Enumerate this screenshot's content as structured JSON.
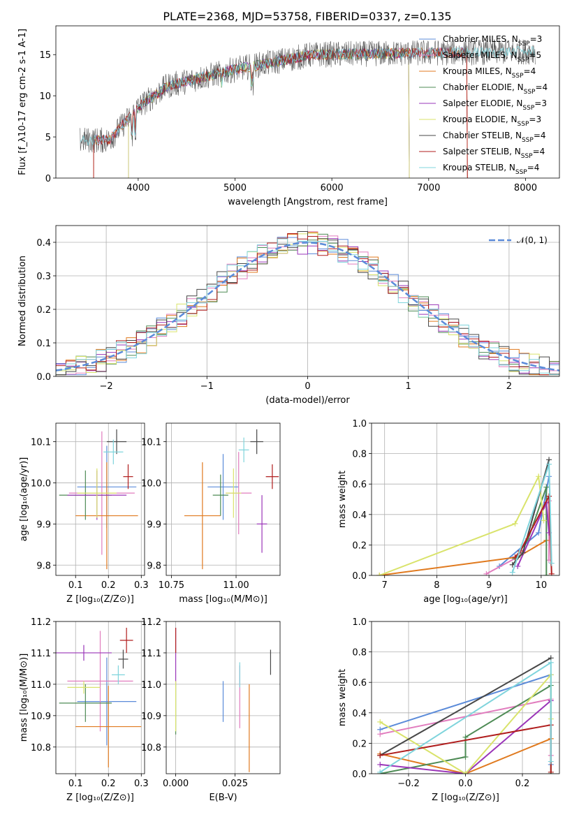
{
  "figure": {
    "title": "PLATE=2368, MJD=53758, FIBERID=0337, z=0.135"
  },
  "colors": {
    "Chabrier MILES": "#5b8bd9",
    "Salpeter MILES": "#e17cbe",
    "Kroupa MILES": "#e07a1f",
    "Chabrier ELODIE": "#4e8b55",
    "Salpeter ELODIE": "#9a35b8",
    "Kroupa ELODIE": "#d9e36b",
    "Chabrier STELIB": "#474747",
    "Salpeter STELIB": "#b01e1e",
    "Kroupa STELIB": "#7fd4dc"
  },
  "chart_data": [
    {
      "id": "spectrum",
      "type": "line",
      "xlabel": "wavelength [Angstrom, rest frame]",
      "ylabel": "Flux [f_λ10^-17 erg cm^-2 s^-1 A^-1]",
      "xlim": [
        3150,
        8350
      ],
      "ylim": [
        0,
        18.5
      ],
      "xticks": [
        4000,
        5000,
        6000,
        7000,
        8000
      ],
      "yticks": [
        0,
        5,
        10,
        15
      ],
      "grid": false,
      "legend_position": "right",
      "series": [
        {
          "name": "Chabrier MILES",
          "nssp": "3",
          "range": [
            3540,
            7400
          ]
        },
        {
          "name": "Salpeter MILES",
          "nssp": "5",
          "range": [
            3540,
            7400
          ]
        },
        {
          "name": "Kroupa MILES",
          "nssp": "4",
          "range": [
            3540,
            7400
          ]
        },
        {
          "name": "Chabrier ELODIE",
          "nssp": "4",
          "range": [
            3900,
            6800
          ]
        },
        {
          "name": "Salpeter ELODIE",
          "nssp": "3",
          "range": [
            3900,
            6800
          ]
        },
        {
          "name": "Kroupa ELODIE",
          "nssp": "3",
          "range": [
            3900,
            6800
          ]
        },
        {
          "name": "Chabrier STELIB",
          "nssp": "4",
          "range": [
            3400,
            8100
          ]
        },
        {
          "name": "Salpeter STELIB",
          "nssp": "4",
          "range": [
            3540,
            7400
          ]
        },
        {
          "name": "Kroupa STELIB",
          "nssp": "4",
          "range": [
            3400,
            8100
          ]
        }
      ]
    },
    {
      "id": "residuals",
      "type": "line",
      "xlabel": "(data-model)/error",
      "ylabel": "Normed distribution",
      "xlim": [
        -2.5,
        2.5
      ],
      "ylim": [
        0,
        0.45
      ],
      "xticks": [
        -2,
        -1,
        0,
        1,
        2
      ],
      "yticks": [
        0.0,
        0.1,
        0.2,
        0.3,
        0.4
      ],
      "grid": true,
      "legend_position": "top-right",
      "reference_curve": {
        "label": "𝒩(0, 1)",
        "mean": 0,
        "sigma": 1
      },
      "bin_width": 0.1,
      "bins_start": -2.5
    },
    {
      "id": "age_vs_Z",
      "type": "scatter",
      "xlabel": "Z [log10(Z/Z⊙)]",
      "ylabel": "age  [log10(age/yr)]",
      "xlim": [
        0.04,
        0.31
      ],
      "ylim": [
        9.775,
        10.145
      ],
      "xticks": [
        0.1,
        0.2,
        0.3
      ],
      "yticks": [
        9.8,
        9.9,
        10.0,
        10.1
      ],
      "grid": true,
      "points": [
        {
          "series": "Chabrier MILES",
          "x": 0.195,
          "xerr": 0.09,
          "y": 9.99,
          "yerr": 0.1
        },
        {
          "series": "Salpeter MILES",
          "x": 0.18,
          "xerr": 0.1,
          "y": 9.975,
          "yerr": 0.15
        },
        {
          "series": "Kroupa MILES",
          "x": 0.195,
          "xerr": 0.095,
          "y": 9.92,
          "yerr": 0.13
        },
        {
          "series": "Chabrier ELODIE",
          "x": 0.13,
          "xerr": 0.08,
          "y": 9.97,
          "yerr": 0.06
        },
        {
          "series": "Salpeter ELODIE",
          "x": 0.165,
          "xerr": 0.09,
          "y": 9.97,
          "yerr": 0.06
        },
        {
          "series": "Kroupa ELODIE",
          "x": 0.165,
          "xerr": 0.06,
          "y": 9.975,
          "yerr": 0.06
        },
        {
          "series": "Chabrier STELIB",
          "x": 0.225,
          "xerr": 0.03,
          "y": 10.1,
          "yerr": 0.03
        },
        {
          "series": "Salpeter STELIB",
          "x": 0.26,
          "xerr": 0.015,
          "y": 10.015,
          "yerr": 0.03
        },
        {
          "series": "Kroupa STELIB",
          "x": 0.215,
          "xerr": 0.03,
          "y": 10.075,
          "yerr": 0.03
        }
      ]
    },
    {
      "id": "age_vs_mass",
      "type": "scatter",
      "xlabel": "mass [log10(M/M⊙)]",
      "ylabel": "",
      "xlim": [
        10.73,
        11.17
      ],
      "ylim": [
        9.775,
        10.145
      ],
      "xticks": [
        10.75,
        11.0
      ],
      "yticks": [
        9.8,
        9.9,
        10.0,
        10.1
      ],
      "grid": true,
      "points": [
        {
          "series": "Chabrier MILES",
          "x": 10.95,
          "xerr": 0.06,
          "y": 9.99,
          "yerr": 0.08
        },
        {
          "series": "Salpeter MILES",
          "x": 11.01,
          "xerr": 0.05,
          "y": 9.975,
          "yerr": 0.1
        },
        {
          "series": "Kroupa MILES",
          "x": 10.87,
          "xerr": 0.07,
          "y": 9.92,
          "yerr": 0.13
        },
        {
          "series": "Chabrier ELODIE",
          "x": 10.94,
          "xerr": 0.03,
          "y": 9.97,
          "yerr": 0.05
        },
        {
          "series": "Salpeter ELODIE",
          "x": 11.1,
          "xerr": 0.02,
          "y": 9.9,
          "yerr": 0.07
        },
        {
          "series": "Kroupa ELODIE",
          "x": 10.99,
          "xerr": 0.03,
          "y": 9.975,
          "yerr": 0.06
        },
        {
          "series": "Chabrier STELIB",
          "x": 11.08,
          "xerr": 0.025,
          "y": 10.1,
          "yerr": 0.03
        },
        {
          "series": "Salpeter STELIB",
          "x": 11.14,
          "xerr": 0.025,
          "y": 10.015,
          "yerr": 0.03
        },
        {
          "series": "Kroupa STELIB",
          "x": 11.03,
          "xerr": 0.02,
          "y": 10.08,
          "yerr": 0.03
        }
      ]
    },
    {
      "id": "weight_vs_age",
      "type": "line",
      "xlabel": "age  [log10(age/yr)]",
      "ylabel": "mass weight",
      "xlim": [
        6.75,
        10.35
      ],
      "ylim": [
        0,
        1.0
      ],
      "xticks": [
        7,
        8,
        9,
        10
      ],
      "yticks": [
        0.0,
        0.2,
        0.4,
        0.6,
        0.8,
        1.0
      ],
      "grid": true,
      "series": [
        {
          "name": "Chabrier MILES",
          "x": [
            9.2,
            9.95,
            10.15
          ],
          "y": [
            0.06,
            0.28,
            0.65
          ]
        },
        {
          "name": "Salpeter MILES",
          "x": [
            8.95,
            9.55,
            9.85,
            10.15,
            10.15
          ],
          "y": [
            0.01,
            0.12,
            0.33,
            0.49,
            0.1
          ]
        },
        {
          "name": "Kroupa MILES",
          "x": [
            6.9,
            9.55,
            10.1
          ],
          "y": [
            0.0,
            0.12,
            0.23
          ]
        },
        {
          "name": "Chabrier ELODIE",
          "x": [
            9.5,
            9.75,
            10.1,
            10.1
          ],
          "y": [
            0.11,
            0.24,
            0.58,
            0.0
          ]
        },
        {
          "name": "Salpeter ELODIE",
          "x": [
            9.55,
            10.1,
            10.15
          ],
          "y": [
            0.06,
            0.48,
            0.28
          ]
        },
        {
          "name": "Kroupa ELODIE",
          "x": [
            6.9,
            9.5,
            9.95,
            10.05
          ],
          "y": [
            0.0,
            0.34,
            0.65,
            0.36
          ]
        },
        {
          "name": "Chabrier STELIB",
          "x": [
            9.45,
            9.65,
            10.15
          ],
          "y": [
            0.07,
            0.15,
            0.76
          ]
        },
        {
          "name": "Salpeter STELIB",
          "x": [
            9.5,
            9.6,
            10.15,
            10.2
          ],
          "y": [
            0.12,
            0.16,
            0.52,
            0.01
          ]
        },
        {
          "name": "Kroupa STELIB",
          "x": [
            9.45,
            10.15,
            10.2
          ],
          "y": [
            0.02,
            0.73,
            0.08
          ]
        }
      ]
    },
    {
      "id": "mass_vs_Z",
      "type": "scatter",
      "xlabel": "Z [log10(Z/Z⊙)]",
      "ylabel": "mass [log10(M/M⊙)]",
      "xlim": [
        0.04,
        0.31
      ],
      "ylim": [
        10.715,
        11.2
      ],
      "xticks": [
        0.1,
        0.2,
        0.3
      ],
      "yticks": [
        10.8,
        10.9,
        11.0,
        11.1,
        11.2
      ],
      "grid": true,
      "points": [
        {
          "series": "Chabrier MILES",
          "x": 0.195,
          "xerr": 0.09,
          "y": 10.945,
          "yerr": 0.14
        },
        {
          "series": "Salpeter MILES",
          "x": 0.175,
          "xerr": 0.1,
          "y": 11.01,
          "yerr": 0.16
        },
        {
          "series": "Kroupa MILES",
          "x": 0.2,
          "xerr": 0.1,
          "y": 10.865,
          "yerr": 0.13
        },
        {
          "series": "Chabrier ELODIE",
          "x": 0.13,
          "xerr": 0.08,
          "y": 10.94,
          "yerr": 0.06
        },
        {
          "series": "Salpeter ELODIE",
          "x": 0.125,
          "xerr": 0.085,
          "y": 11.1,
          "yerr": 0.025
        },
        {
          "series": "Kroupa ELODIE",
          "x": 0.125,
          "xerr": 0.05,
          "y": 10.99,
          "yerr": 0.02
        },
        {
          "series": "Chabrier STELIB",
          "x": 0.245,
          "xerr": 0.015,
          "y": 11.08,
          "yerr": 0.03
        },
        {
          "series": "Salpeter STELIB",
          "x": 0.255,
          "xerr": 0.02,
          "y": 11.14,
          "yerr": 0.04
        },
        {
          "series": "Kroupa STELIB",
          "x": 0.23,
          "xerr": 0.02,
          "y": 11.03,
          "yerr": 0.03
        }
      ]
    },
    {
      "id": "mass_vs_ebv",
      "type": "scatter",
      "xlabel": "E(B-V)",
      "ylabel": "",
      "xlim": [
        -0.004,
        0.044
      ],
      "ylim": [
        10.715,
        11.2
      ],
      "xticks": [
        0.0,
        0.025
      ],
      "yticks": [
        10.8,
        10.9,
        11.0,
        11.1,
        11.2
      ],
      "grid": true,
      "points": [
        {
          "series": "Chabrier MILES",
          "x": 0.02,
          "xerr": 0,
          "y": 10.945,
          "yerr": 0.065
        },
        {
          "series": "Salpeter MILES",
          "x": 0.027,
          "xerr": 0,
          "y": 10.96,
          "yerr": 0.1
        },
        {
          "series": "Kroupa MILES",
          "x": 0.031,
          "xerr": 0,
          "y": 10.86,
          "yerr": 0.14
        },
        {
          "series": "Chabrier ELODIE",
          "x": 0.0,
          "xerr": 0,
          "y": 10.92,
          "yerr": 0.08
        },
        {
          "series": "Salpeter ELODIE",
          "x": 0.0,
          "xerr": 0,
          "y": 11.09,
          "yerr": 0.09
        },
        {
          "series": "Kroupa ELODIE",
          "x": 0.0,
          "xerr": 0,
          "y": 10.93,
          "yerr": 0.08
        },
        {
          "series": "Chabrier STELIB",
          "x": 0.04,
          "xerr": 0,
          "y": 11.07,
          "yerr": 0.04
        },
        {
          "series": "Salpeter STELIB",
          "x": 0.0,
          "xerr": 0,
          "y": 11.14,
          "yerr": 0.04
        },
        {
          "series": "Kroupa STELIB",
          "x": 0.027,
          "xerr": 0,
          "y": 11.03,
          "yerr": 0.04
        }
      ]
    },
    {
      "id": "weight_vs_Z",
      "type": "line",
      "xlabel": "Z [log10(Z/Z⊙)]",
      "ylabel": "mass weight",
      "xlim": [
        -0.33,
        0.33
      ],
      "ylim": [
        0,
        1.0
      ],
      "xticks": [
        -0.2,
        0.0,
        0.2
      ],
      "yticks": [
        0.0,
        0.2,
        0.4,
        0.6,
        0.8,
        1.0
      ],
      "grid": true,
      "series": [
        {
          "name": "Chabrier MILES",
          "x": [
            -0.3,
            0.3,
            0.3
          ],
          "y": [
            0.29,
            0.65,
            0.06
          ]
        },
        {
          "name": "Salpeter MILES",
          "x": [
            -0.3,
            0.3,
            0.3
          ],
          "y": [
            0.26,
            0.49,
            0.12
          ]
        },
        {
          "name": "Kroupa MILES",
          "x": [
            -0.3,
            0.0,
            0.3
          ],
          "y": [
            0.13,
            0.0,
            0.23
          ]
        },
        {
          "name": "Chabrier ELODIE",
          "x": [
            -0.3,
            0.0,
            0.0,
            0.3,
            0.3
          ],
          "y": [
            0.0,
            0.11,
            0.24,
            0.58,
            0.0
          ]
        },
        {
          "name": "Salpeter ELODIE",
          "x": [
            -0.3,
            0.0,
            0.3
          ],
          "y": [
            0.06,
            0.0,
            0.48
          ]
        },
        {
          "name": "Kroupa ELODIE",
          "x": [
            -0.3,
            0.0,
            0.3,
            0.3
          ],
          "y": [
            0.34,
            0.0,
            0.65,
            0.36
          ]
        },
        {
          "name": "Chabrier STELIB",
          "x": [
            -0.3,
            0.3
          ],
          "y": [
            0.12,
            0.76
          ]
        },
        {
          "name": "Salpeter STELIB",
          "x": [
            -0.3,
            0.3,
            0.3
          ],
          "y": [
            0.12,
            0.32,
            0.01
          ]
        },
        {
          "name": "Kroupa STELIB",
          "x": [
            -0.3,
            0.3,
            0.3
          ],
          "y": [
            0.01,
            0.73,
            0.08
          ]
        }
      ]
    }
  ]
}
